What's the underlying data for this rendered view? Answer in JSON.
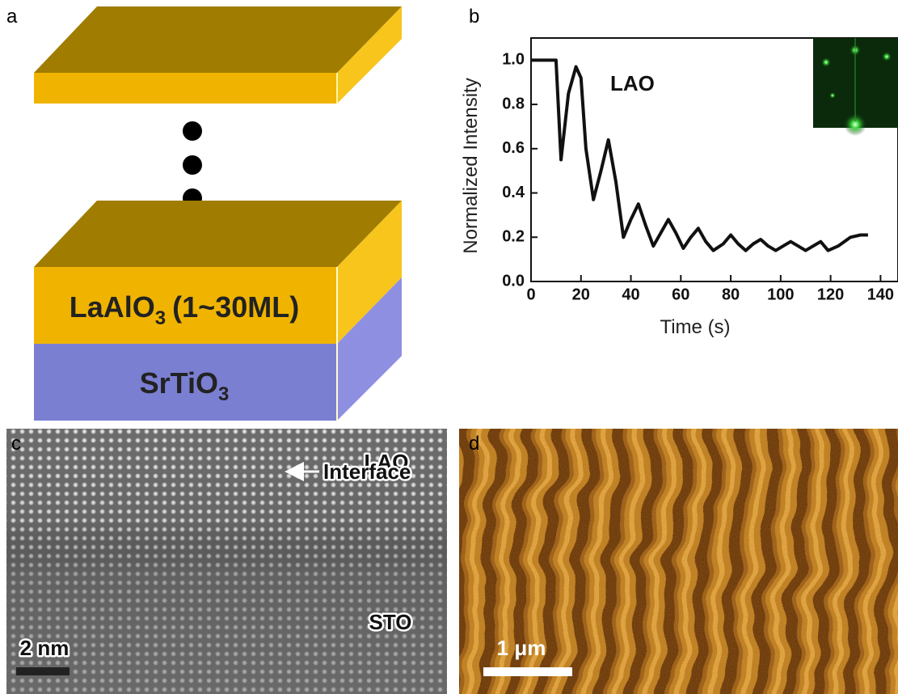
{
  "panel_labels": [
    "a",
    "b",
    "c",
    "d"
  ],
  "diagram": {
    "layer_label": {
      "main": "LaAlO",
      "sub": "3",
      "rest": "(1~30ML)"
    },
    "substrate_label": {
      "main": "SrTiO",
      "sub": "3"
    }
  },
  "chart_data": {
    "type": "line",
    "x_label": "Time (s)",
    "y_label": "Normalized Intensity",
    "annotation": "LAO",
    "color": "#111111",
    "x": [
      0,
      10,
      12,
      15,
      18,
      20,
      22,
      25,
      28,
      31,
      34,
      37,
      40,
      43,
      46,
      49,
      52,
      55,
      58,
      61,
      64,
      67,
      70,
      73,
      77,
      80,
      83,
      86,
      89,
      92,
      95,
      98,
      101,
      104,
      107,
      110,
      113,
      116,
      119,
      123,
      128,
      132,
      135
    ],
    "values": [
      1,
      1,
      0.55,
      0.85,
      0.97,
      0.92,
      0.6,
      0.37,
      0.5,
      0.64,
      0.45,
      0.2,
      0.28,
      0.35,
      0.25,
      0.16,
      0.22,
      0.28,
      0.22,
      0.15,
      0.2,
      0.24,
      0.18,
      0.14,
      0.17,
      0.21,
      0.17,
      0.14,
      0.17,
      0.19,
      0.16,
      0.14,
      0.16,
      0.18,
      0.16,
      0.14,
      0.16,
      0.18,
      0.14,
      0.16,
      0.2,
      0.21,
      0.21
    ],
    "xlim": [
      0,
      147
    ],
    "ylim": [
      0,
      1.1
    ],
    "xticks": [
      0,
      20,
      40,
      60,
      80,
      100,
      120,
      140
    ],
    "yticks": [
      {
        "value": 0,
        "label": "0.0"
      },
      0.2,
      0.4,
      0.6,
      0.8,
      {
        "value": 1,
        "label": "1.0"
      }
    ]
  },
  "tem_image": {
    "labels": [
      "LAO",
      "Interface",
      "STO"
    ],
    "scale_bar": "2 nm"
  },
  "afm_image": {
    "scale_bar": "1 μm"
  }
}
